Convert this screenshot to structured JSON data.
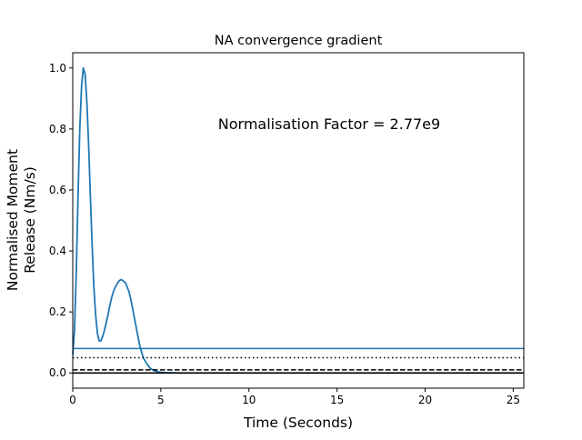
{
  "chart_data": {
    "type": "line",
    "title": "NA convergence gradient",
    "xlabel": "Time (Seconds)",
    "ylabel_lines": [
      "Normalised Moment",
      "Release (Nm/s)"
    ],
    "annotation": "Normalisation Factor = 2.77e9",
    "xlim": [
      0,
      25.6
    ],
    "ylim": [
      -0.05,
      1.05
    ],
    "x_ticks": [
      0,
      5,
      10,
      15,
      20,
      25
    ],
    "y_ticks": [
      0.0,
      0.2,
      0.4,
      0.6,
      0.8,
      1.0
    ],
    "x_tick_labels": [
      "0",
      "5",
      "10",
      "15",
      "20",
      "25"
    ],
    "y_tick_labels": [
      "0.0",
      "0.2",
      "0.4",
      "0.6",
      "0.8",
      "1.0"
    ],
    "grid": false,
    "series": [
      {
        "color": "#1f77b4",
        "x": [
          0.0,
          0.1,
          0.2,
          0.3,
          0.4,
          0.5,
          0.6,
          0.7,
          0.8,
          0.9,
          1.0,
          1.1,
          1.2,
          1.3,
          1.4,
          1.5,
          1.6,
          1.7,
          1.8,
          1.9,
          2.0,
          2.1,
          2.2,
          2.3,
          2.4,
          2.5,
          2.6,
          2.7,
          2.8,
          2.9,
          3.0,
          3.1,
          3.2,
          3.3,
          3.4,
          3.5,
          3.6,
          3.7,
          3.8,
          3.9,
          4.0,
          4.2,
          4.4,
          4.6,
          4.8,
          5.0,
          5.3,
          5.6,
          6.0,
          7.0,
          10.0,
          15.0,
          20.0,
          25.6
        ],
        "y": [
          0.06,
          0.14,
          0.33,
          0.58,
          0.8,
          0.94,
          1.0,
          0.98,
          0.89,
          0.75,
          0.58,
          0.42,
          0.28,
          0.19,
          0.13,
          0.105,
          0.105,
          0.12,
          0.14,
          0.165,
          0.19,
          0.22,
          0.245,
          0.265,
          0.28,
          0.29,
          0.3,
          0.305,
          0.305,
          0.3,
          0.295,
          0.28,
          0.265,
          0.24,
          0.21,
          0.18,
          0.15,
          0.12,
          0.09,
          0.07,
          0.05,
          0.03,
          0.015,
          0.008,
          0.004,
          0.002,
          0.001,
          0.0005,
          0.0,
          0.0,
          0.0,
          0.0,
          0.0,
          0.0
        ]
      },
      {
        "style": "solid",
        "color": "#1f77b4",
        "x": [
          0,
          25.6
        ],
        "y": [
          0.08,
          0.08
        ]
      },
      {
        "style": "dotted",
        "color": "#000000",
        "x": [
          0,
          25.6
        ],
        "y": [
          0.05,
          0.05
        ]
      },
      {
        "style": "dashed",
        "color": "#000000",
        "x": [
          0,
          25.6
        ],
        "y": [
          0.01,
          0.01
        ]
      },
      {
        "style": "solid",
        "color": "#000000",
        "x": [
          0,
          25.6
        ],
        "y": [
          0.0,
          0.0
        ]
      }
    ]
  }
}
